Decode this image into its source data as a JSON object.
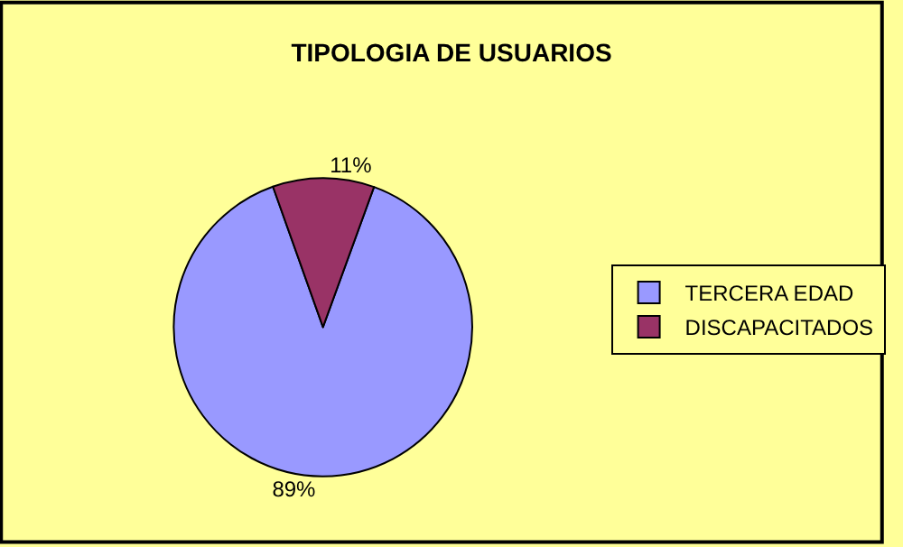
{
  "chart_data": {
    "type": "pie",
    "title": "TIPOLOGIA DE USUARIOS",
    "categories": [
      "TERCERA EDAD",
      "DISCAPACITADOS"
    ],
    "values": [
      89,
      11
    ],
    "colors": [
      "#9999ff",
      "#993366"
    ],
    "value_labels": [
      "89%",
      "11%"
    ],
    "legend": "right"
  }
}
